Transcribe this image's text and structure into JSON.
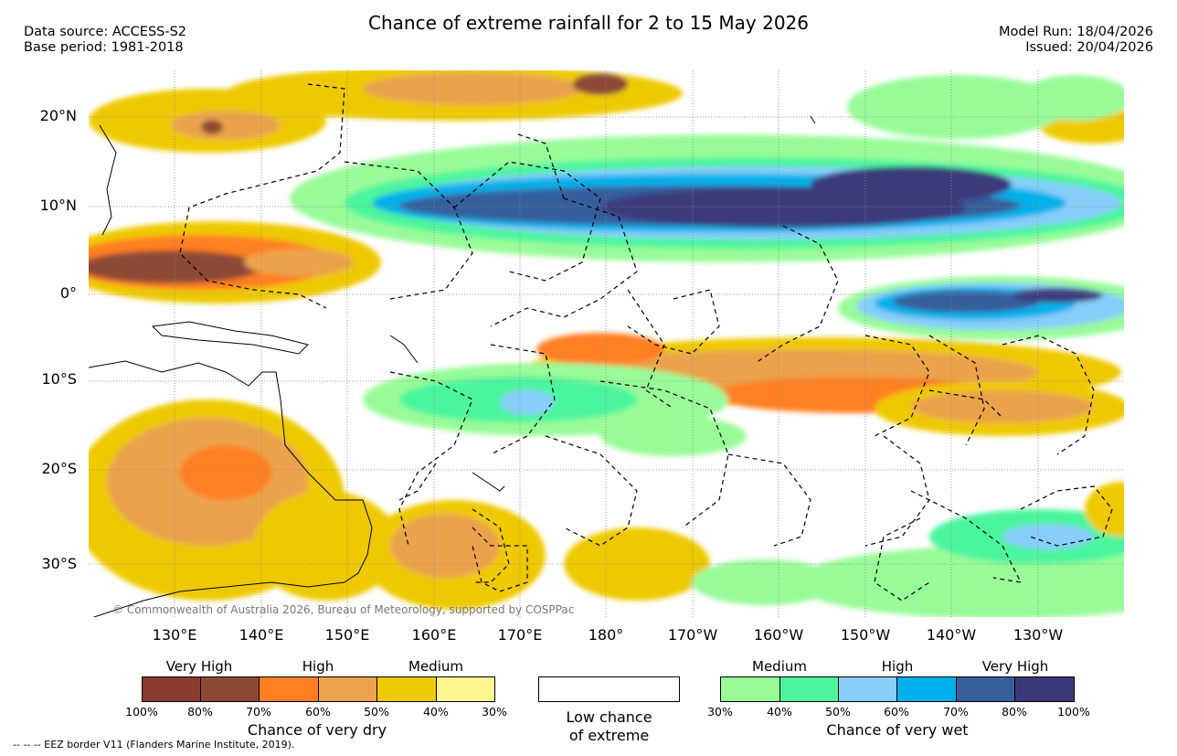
{
  "title": "Chance of extreme rainfall for 2 to 15 May 2026",
  "header": {
    "data_source": "Data source: ACCESS-S2",
    "base_period": "Base period: 1981-2018",
    "model_run": "Model Run: 18/04/2026",
    "issued": "Issued: 20/04/2026"
  },
  "map": {
    "copyright": "© Commonwealth of Australia 2026, Bureau of Meteorology, supported by COSPPac",
    "lat_labels": [
      "20°N",
      "10°N",
      "0°",
      "10°S",
      "20°S",
      "30°S"
    ],
    "lon_labels": [
      "130°E",
      "140°E",
      "150°E",
      "160°E",
      "170°E",
      "180°",
      "170°W",
      "160°W",
      "150°W",
      "140°W",
      "130°W"
    ],
    "extent": {
      "lon_min": 120,
      "lon_max": 240,
      "lat_min": -36,
      "lat_max": 25
    }
  },
  "legend": {
    "dry": {
      "band_labels": [
        "Very High",
        "High",
        "Medium"
      ],
      "colors": [
        "#8b3a2f",
        "#8c4a35",
        "#ff7f24",
        "#eba34c",
        "#eec900",
        "#fff68f"
      ],
      "ticks": [
        "100%",
        "80%",
        "70%",
        "60%",
        "50%",
        "40%",
        "30%"
      ],
      "caption": "Chance of very dry"
    },
    "low": {
      "caption_line1": "Low chance",
      "caption_line2": "of extreme"
    },
    "wet": {
      "band_labels": [
        "Medium",
        "High",
        "Very High"
      ],
      "colors": [
        "#98fb98",
        "#4cf59e",
        "#87cefa",
        "#00b0ea",
        "#365f9c",
        "#3a3a7a"
      ],
      "ticks": [
        "30%",
        "40%",
        "50%",
        "60%",
        "70%",
        "80%",
        "100%"
      ],
      "caption": "Chance of very wet"
    }
  },
  "footnote": "--  --  -- EEZ border V11 (Flanders Marine Institute, 2019)."
}
